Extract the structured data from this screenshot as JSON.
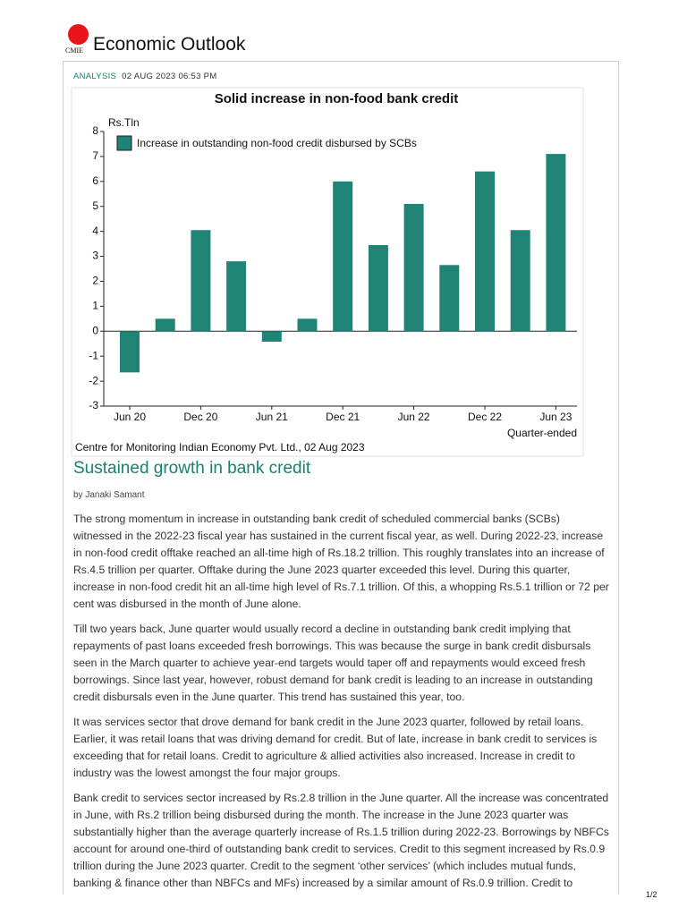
{
  "header": {
    "logo": "CMIE",
    "title": "Economic Outlook"
  },
  "meta": {
    "tag": "ANALYSIS",
    "date": "02 AUG 2023 06:53 PM"
  },
  "chart_data": {
    "type": "bar",
    "title": "Solid increase in non-food bank credit",
    "y_label": "Rs.Tln",
    "x_label": "Quarter-ended",
    "source": "Centre for Monitoring Indian Economy Pvt. Ltd., 02 Aug 2023",
    "categories": [
      "Jun 20",
      null,
      "Dec 20",
      null,
      "Jun 21",
      null,
      "Dec 21",
      null,
      "Jun 22",
      null,
      "Dec 22",
      null,
      "Jun 23"
    ],
    "series": [
      {
        "name": "Increase in outstanding non-food credit disbursed by SCBs",
        "color": "#1f8476",
        "values": [
          -1.65,
          0.5,
          4.05,
          2.8,
          -0.42,
          0.5,
          6.0,
          3.45,
          5.1,
          2.65,
          6.4,
          4.05,
          7.1
        ]
      }
    ],
    "ylim": [
      -3,
      8
    ],
    "yticks": [
      -3,
      -2,
      -1,
      0,
      1,
      2,
      3,
      4,
      5,
      6,
      7,
      8
    ],
    "grid": false,
    "legend": "top-left"
  },
  "article": {
    "heading": "Sustained growth in bank credit",
    "byline": "by Janaki Samant",
    "paragraphs": [
      "The strong momentum in increase in outstanding bank credit of scheduled commercial banks (SCBs) witnessed in the 2022-23 fiscal year has sustained in the current fiscal year, as well. During 2022-23, increase in non-food credit offtake reached an all-time high of Rs.18.2 trillion. This roughly translates into an increase of Rs.4.5 trillion per quarter. Offtake during the June 2023 quarter exceeded this level. During this quarter, increase in non-food credit hit an all-time high level of Rs.7.1 trillion. Of this, a whopping Rs.5.1 trillion or 72 per cent was disbursed in the month of June alone.",
      "Till two years back, June quarter would usually record a decline in outstanding bank credit implying that repayments of past loans exceeded fresh borrowings. This was because the surge in bank credit disbursals seen in the March quarter to achieve year-end targets would taper off and repayments would exceed fresh borrowings. Since last year, however, robust demand for bank credit is leading to an increase in outstanding credit disbursals even in the June quarter. This trend has sustained this year, too.",
      "It was services sector that drove demand for bank credit in the June 2023 quarter, followed by retail loans. Earlier, it was retail loans that was driving demand for credit. But of late, increase in bank credit to services is exceeding that for retail loans. Credit to agriculture & allied activities also increased. Increase in credit to industry was the lowest amongst the four major groups.",
      "Bank credit to services sector increased by Rs.2.8 trillion in the June quarter. All the increase was concentrated in June, with Rs.2 trillion being disbursed during the month. The increase in the June 2023 quarter was substantially higher than the average quarterly increase of Rs.1.5 trillion during 2022-23. Borrowings by NBFCs account for around one-third of outstanding bank credit to services. Credit to this segment increased by Rs.0.9 trillion during the June 2023 quarter. Credit to the segment ‘other services’ (which includes mutual funds, banking & finance other than NBFCs and MFs) increased by a similar amount of Rs.0.9 trillion. Credit to"
    ]
  },
  "footer": {
    "page": "1/2"
  }
}
